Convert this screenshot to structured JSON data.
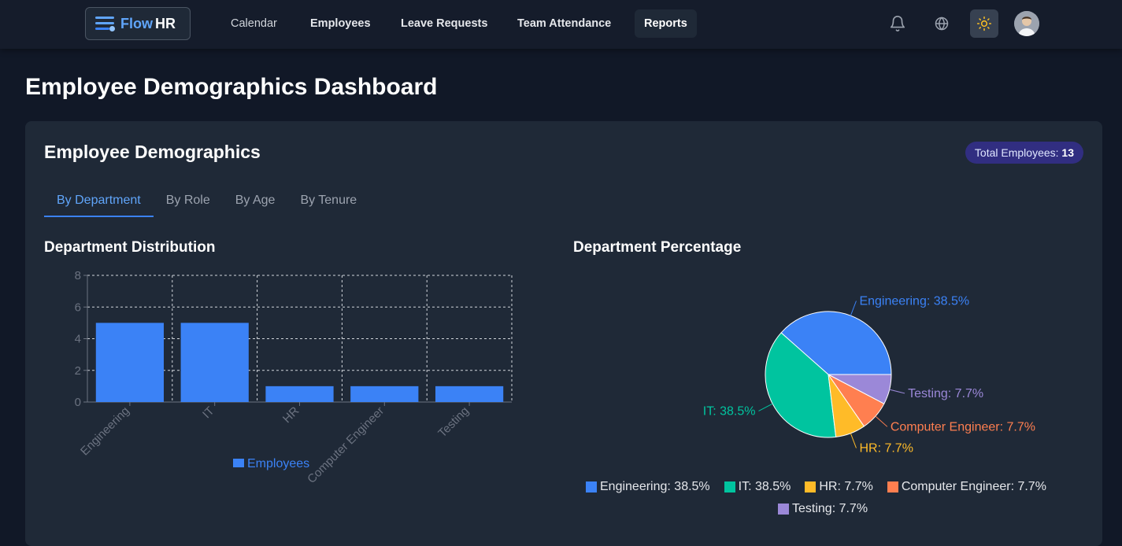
{
  "brand": {
    "name_part1": "Flow",
    "name_part2": "HR"
  },
  "nav": {
    "items": [
      {
        "label": "Calendar"
      },
      {
        "label": "Employees"
      },
      {
        "label": "Leave Requests"
      },
      {
        "label": "Team Attendance"
      },
      {
        "label": "Reports"
      }
    ],
    "active": "Reports",
    "icons": [
      "bell-icon",
      "globe-icon",
      "sun-icon"
    ]
  },
  "page": {
    "title": "Employee Demographics Dashboard"
  },
  "card": {
    "title": "Employee Demographics",
    "badge_label": "Total Employees: ",
    "badge_value": "13"
  },
  "tabs": [
    {
      "label": "By Department"
    },
    {
      "label": "By Role"
    },
    {
      "label": "By Age"
    },
    {
      "label": "By Tenure"
    }
  ],
  "active_tab": "By Department",
  "bar_section": {
    "title": "Department Distribution"
  },
  "pie_section": {
    "title": "Department Percentage"
  },
  "colors": {
    "accent": "#3b82f6",
    "engineering": "#3b82f6",
    "it": "#00c49f",
    "hr": "#ffbb28",
    "computer_engineer": "#ff7f50",
    "testing": "#9b88d8"
  },
  "chart_data": [
    {
      "type": "bar",
      "title": "Department Distribution",
      "categories": [
        "Engineering",
        "IT",
        "HR",
        "Computer Engineer",
        "Testing"
      ],
      "series": [
        {
          "name": "Employees",
          "values": [
            5,
            5,
            1,
            1,
            1
          ]
        }
      ],
      "yticks": [
        0,
        2,
        4,
        6,
        8
      ],
      "ylim": [
        0,
        8
      ],
      "grid": true,
      "legend": "bottom"
    },
    {
      "type": "pie",
      "title": "Department Percentage",
      "labels": [
        "Engineering",
        "IT",
        "HR",
        "Computer Engineer",
        "Testing"
      ],
      "values": [
        38.5,
        38.5,
        7.7,
        7.7,
        7.7
      ],
      "slice_labels": [
        "Engineering: 38.5%",
        "IT: 38.5%",
        "HR: 7.7%",
        "Computer Engineer: 7.7%",
        "Testing: 7.7%"
      ],
      "legend": "bottom"
    }
  ]
}
